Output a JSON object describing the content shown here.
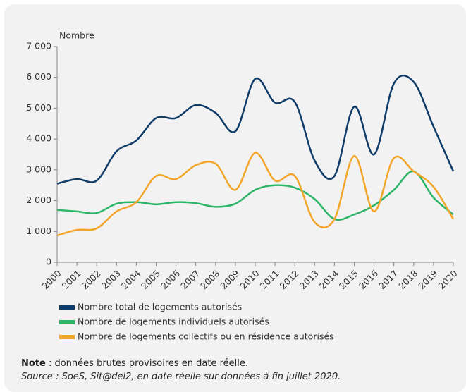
{
  "chart_data": {
    "type": "line",
    "y_label": "Nombre",
    "categories": [
      "2000",
      "2001",
      "2002",
      "2003",
      "2004",
      "2005",
      "2006",
      "2007",
      "2008",
      "2009",
      "2010",
      "2011",
      "2012",
      "2013",
      "2014",
      "2015",
      "2016",
      "2017",
      "2018",
      "2019",
      "2020"
    ],
    "series": [
      {
        "name": "Nombre total de logements autorisés",
        "color": "#0f3b69",
        "values": [
          2550,
          2700,
          2650,
          3600,
          3950,
          4680,
          4680,
          5100,
          4850,
          4250,
          5950,
          5180,
          5200,
          3300,
          2800,
          5050,
          3500,
          5800,
          5850,
          4400,
          2950
        ]
      },
      {
        "name": "Nombre de logements individuels autorisés",
        "color": "#2db567",
        "values": [
          1700,
          1650,
          1600,
          1900,
          1950,
          1880,
          1950,
          1920,
          1800,
          1900,
          2350,
          2500,
          2420,
          2050,
          1400,
          1550,
          1850,
          2350,
          2950,
          2100,
          1550
        ]
      },
      {
        "name": "Nombre de logements collectifs ou en résidence autorisés",
        "color": "#f3a52a",
        "values": [
          870,
          1050,
          1100,
          1650,
          1950,
          2800,
          2700,
          3150,
          3200,
          2350,
          3550,
          2650,
          2800,
          1300,
          1400,
          3450,
          1650,
          3380,
          2950,
          2450,
          1400
        ]
      }
    ],
    "ylim": [
      0,
      7000
    ],
    "yticks": [
      0,
      {
        "value": 1000,
        "label": "1 000"
      },
      {
        "value": 2000,
        "label": "2 000"
      },
      {
        "value": 3000,
        "label": "3 000"
      },
      {
        "value": 4000,
        "label": "4 000"
      },
      {
        "value": 5000,
        "label": "5 000"
      },
      {
        "value": 6000,
        "label": "6 000"
      },
      {
        "value": 7000,
        "label": "7 000"
      }
    ],
    "grid": false
  },
  "note": {
    "label": "Note",
    "text": " : données brutes provisoires en date réelle.",
    "source": "Source : SoeS, Sit@del2, en date réelle sur données à fin juillet 2020."
  }
}
